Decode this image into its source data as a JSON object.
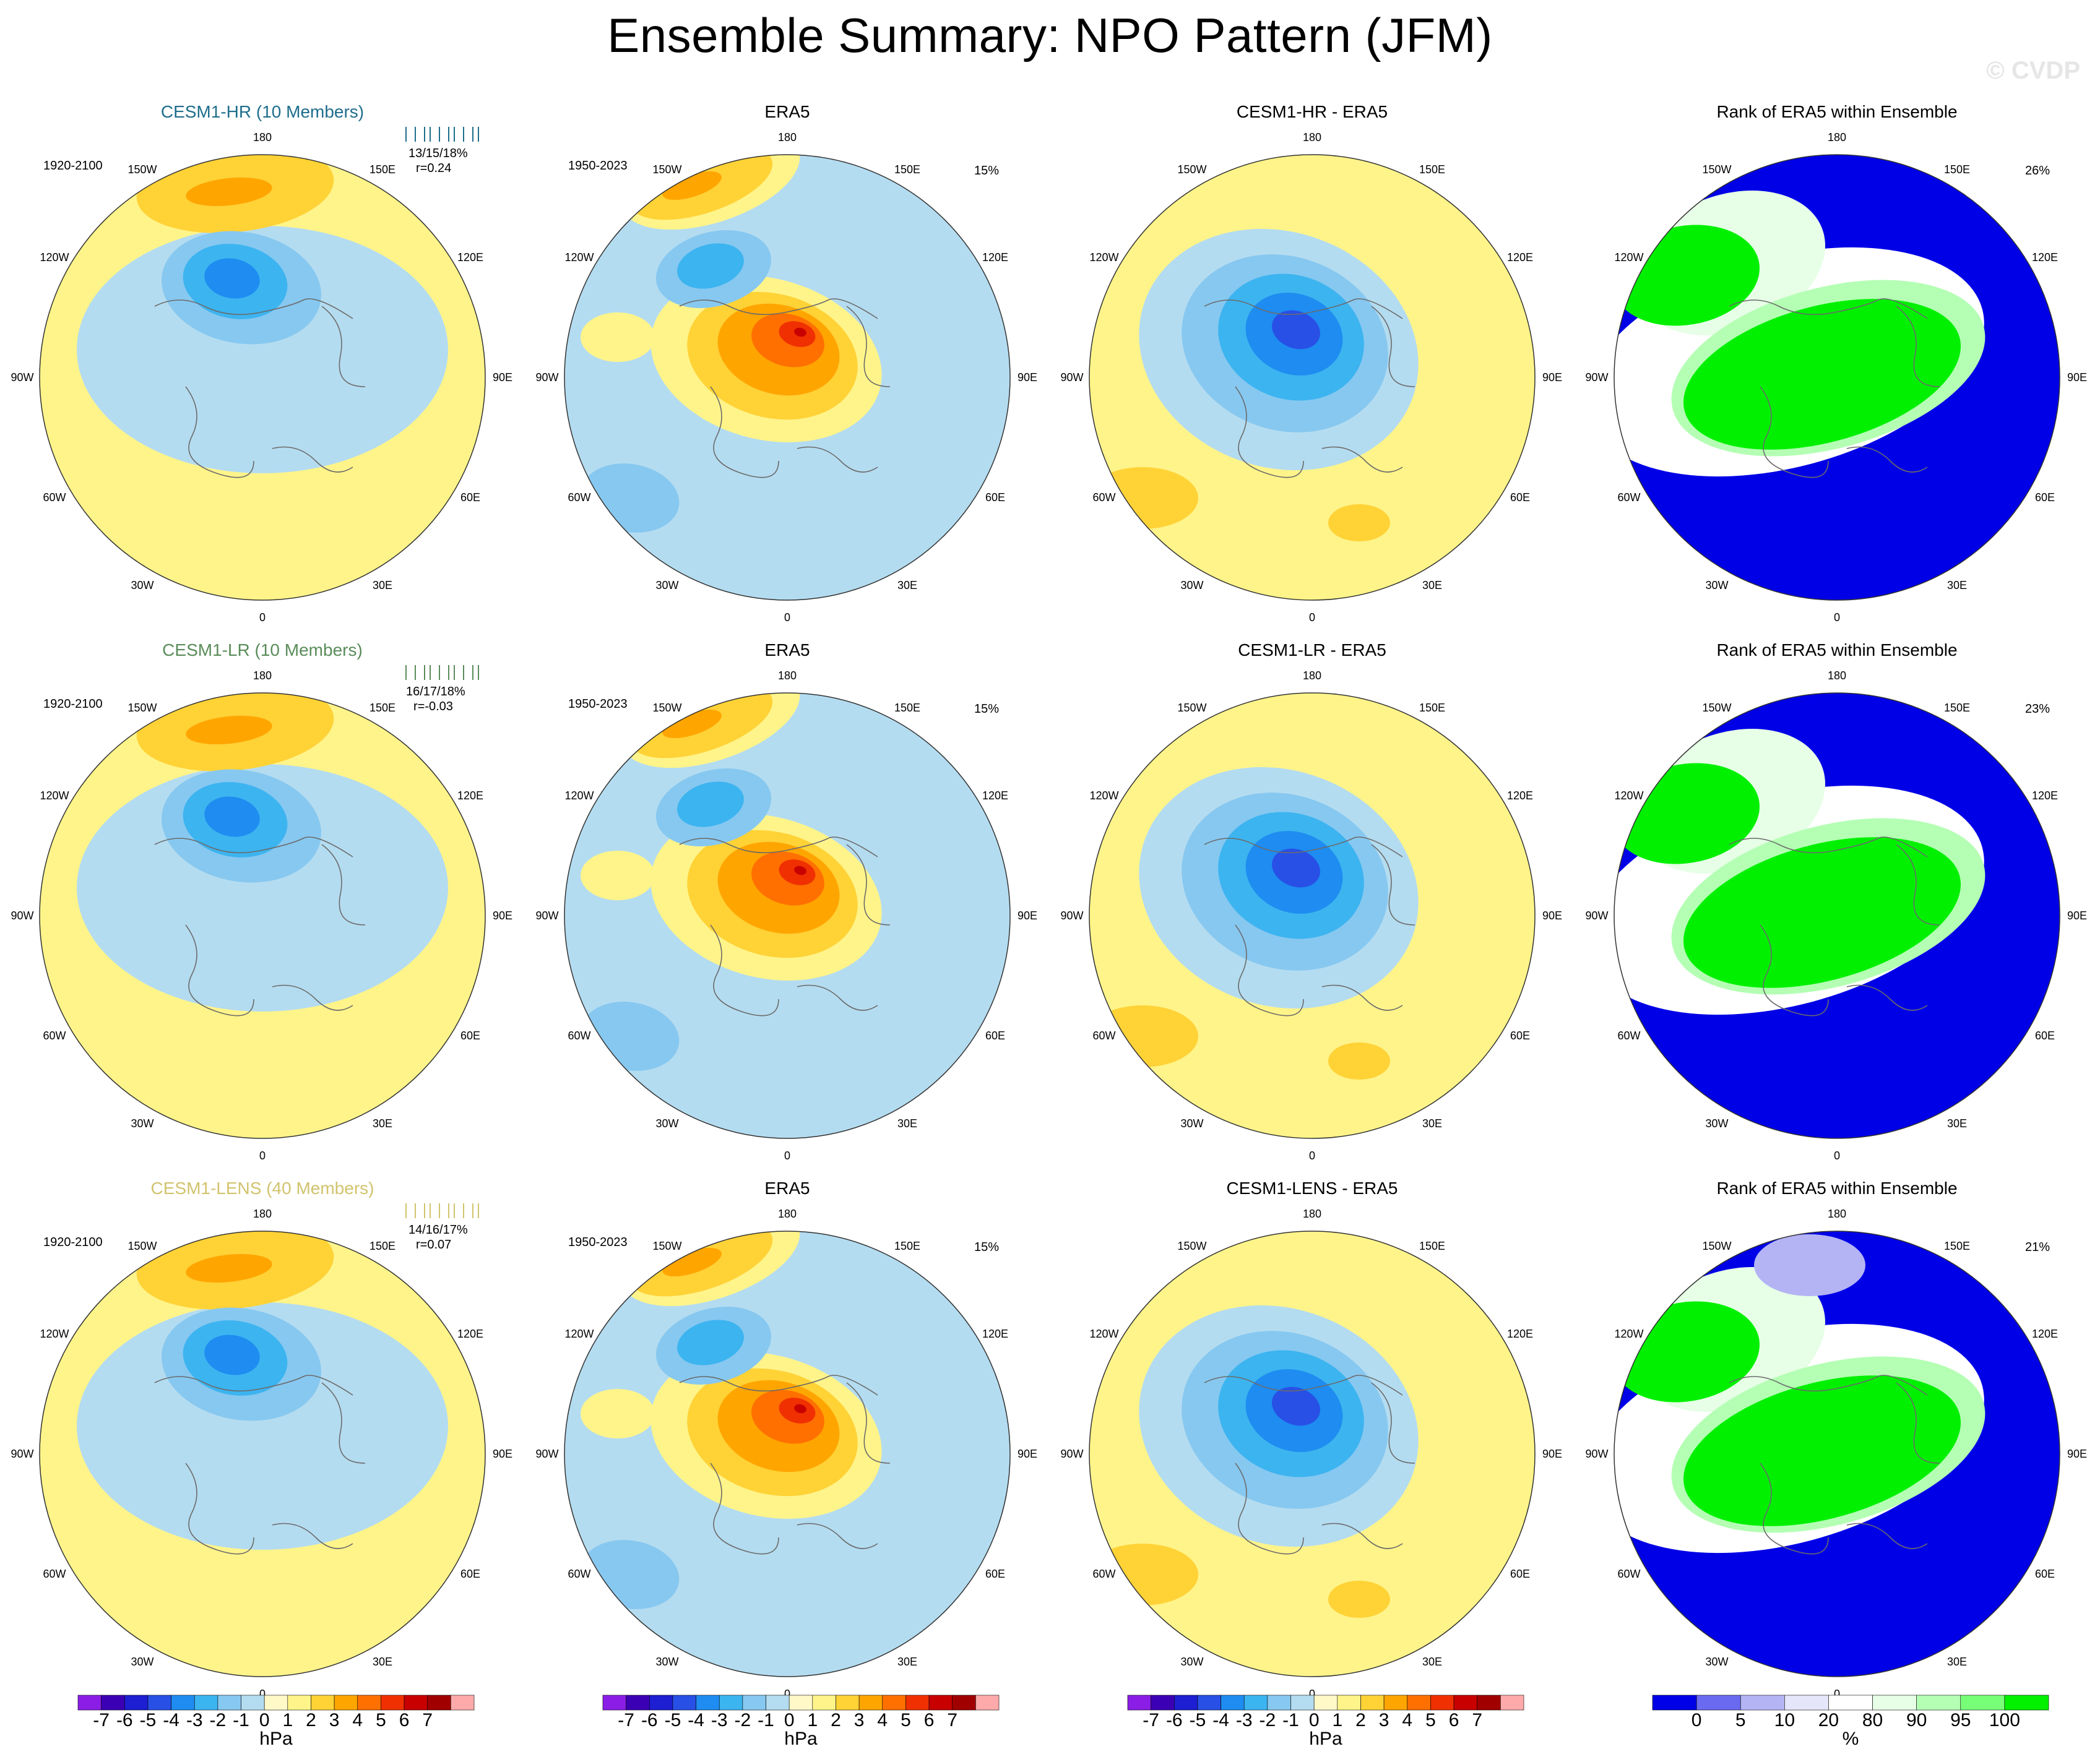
{
  "title": "Ensemble Summary: NPO Pattern (JFM)",
  "watermark": "© CVDP",
  "colors": {
    "land_line": "#6b6b6b",
    "pos": [
      "#ffffff",
      "#fff48a",
      "#ffd236",
      "#ffa500",
      "#ff7000",
      "#f03000",
      "#c80000",
      "#a00000"
    ],
    "neg": [
      "#b4dcf0",
      "#87c8f0",
      "#3cb4f0",
      "#1e8cf0",
      "#2850e6",
      "#1e1ed2",
      "#3c00b4",
      "#8a1ee6"
    ],
    "rank": [
      "#0000e6",
      "#6a6af0",
      "#b4b4f5",
      "#e6e6fa",
      "#ffffff",
      "#e6ffe6",
      "#b4ffb4",
      "#78ff78",
      "#00f000"
    ]
  },
  "lon_labels": [
    {
      "t": "180",
      "deg": 180
    },
    {
      "t": "150E",
      "deg": 150
    },
    {
      "t": "120E",
      "deg": 120
    },
    {
      "t": "90E",
      "deg": 90
    },
    {
      "t": "60E",
      "deg": 60
    },
    {
      "t": "30E",
      "deg": 30
    },
    {
      "t": "0",
      "deg": 0
    },
    {
      "t": "30W",
      "deg": -30
    },
    {
      "t": "60W",
      "deg": -60
    },
    {
      "t": "90W",
      "deg": -90
    },
    {
      "t": "120W",
      "deg": -120
    },
    {
      "t": "150W",
      "deg": -150
    }
  ],
  "rows": [
    {
      "model": "CESM1-HR (10 Members)",
      "model_color": "#1e6e8c",
      "model_period": "1920-2100",
      "stats_pct": "13/15/18%",
      "stats_r": "r=0.24",
      "era5_title": "ERA5",
      "era5_period": "1950-2023",
      "era5_pct": "15%",
      "diff_title": "CESM1-HR - ERA5",
      "rank_title": "Rank of ERA5 within Ensemble",
      "rank_pct": "26%"
    },
    {
      "model": "CESM1-LR (10 Members)",
      "model_color": "#5a8c5a",
      "model_period": "1920-2100",
      "stats_pct": "16/17/18%",
      "stats_r": "r=-0.03",
      "era5_title": "ERA5",
      "era5_period": "1950-2023",
      "era5_pct": "15%",
      "diff_title": "CESM1-LR - ERA5",
      "rank_title": "Rank of ERA5 within Ensemble",
      "rank_pct": "23%"
    },
    {
      "model": "CESM1-LENS (40 Members)",
      "model_color": "#d2c36e",
      "model_period": "1920-2100",
      "stats_pct": "14/16/17%",
      "stats_r": "r=0.07",
      "era5_title": "ERA5",
      "era5_period": "1950-2023",
      "era5_pct": "15%",
      "diff_title": "CESM1-LENS - ERA5",
      "rank_title": "Rank of ERA5 within Ensemble",
      "rank_pct": "21%"
    }
  ],
  "colorbar_hpa": {
    "labels": [
      "-7",
      "-6",
      "-5",
      "-4",
      "-3",
      "-2",
      "-1",
      "0",
      "1",
      "2",
      "3",
      "4",
      "5",
      "6",
      "7"
    ],
    "unit": "hPa",
    "colors": [
      "#8a1ee6",
      "#3c00b4",
      "#1e1ed2",
      "#2850e6",
      "#1e8cf0",
      "#3cb4f0",
      "#87c8f0",
      "#b4dcf0",
      "#fff9c8",
      "#fff48a",
      "#ffd236",
      "#ffa500",
      "#ff7000",
      "#f03000",
      "#c80000",
      "#a00000",
      "#ffaaaa"
    ]
  },
  "colorbar_rank": {
    "labels": [
      "0",
      "5",
      "10",
      "20",
      "80",
      "90",
      "95",
      "100"
    ],
    "unit": "%",
    "colors": [
      "#0000e6",
      "#6a6af0",
      "#b4b4f5",
      "#e6e6fa",
      "#ffffff",
      "#e6ffe6",
      "#b4ffb4",
      "#78ff78",
      "#00f000"
    ]
  }
}
